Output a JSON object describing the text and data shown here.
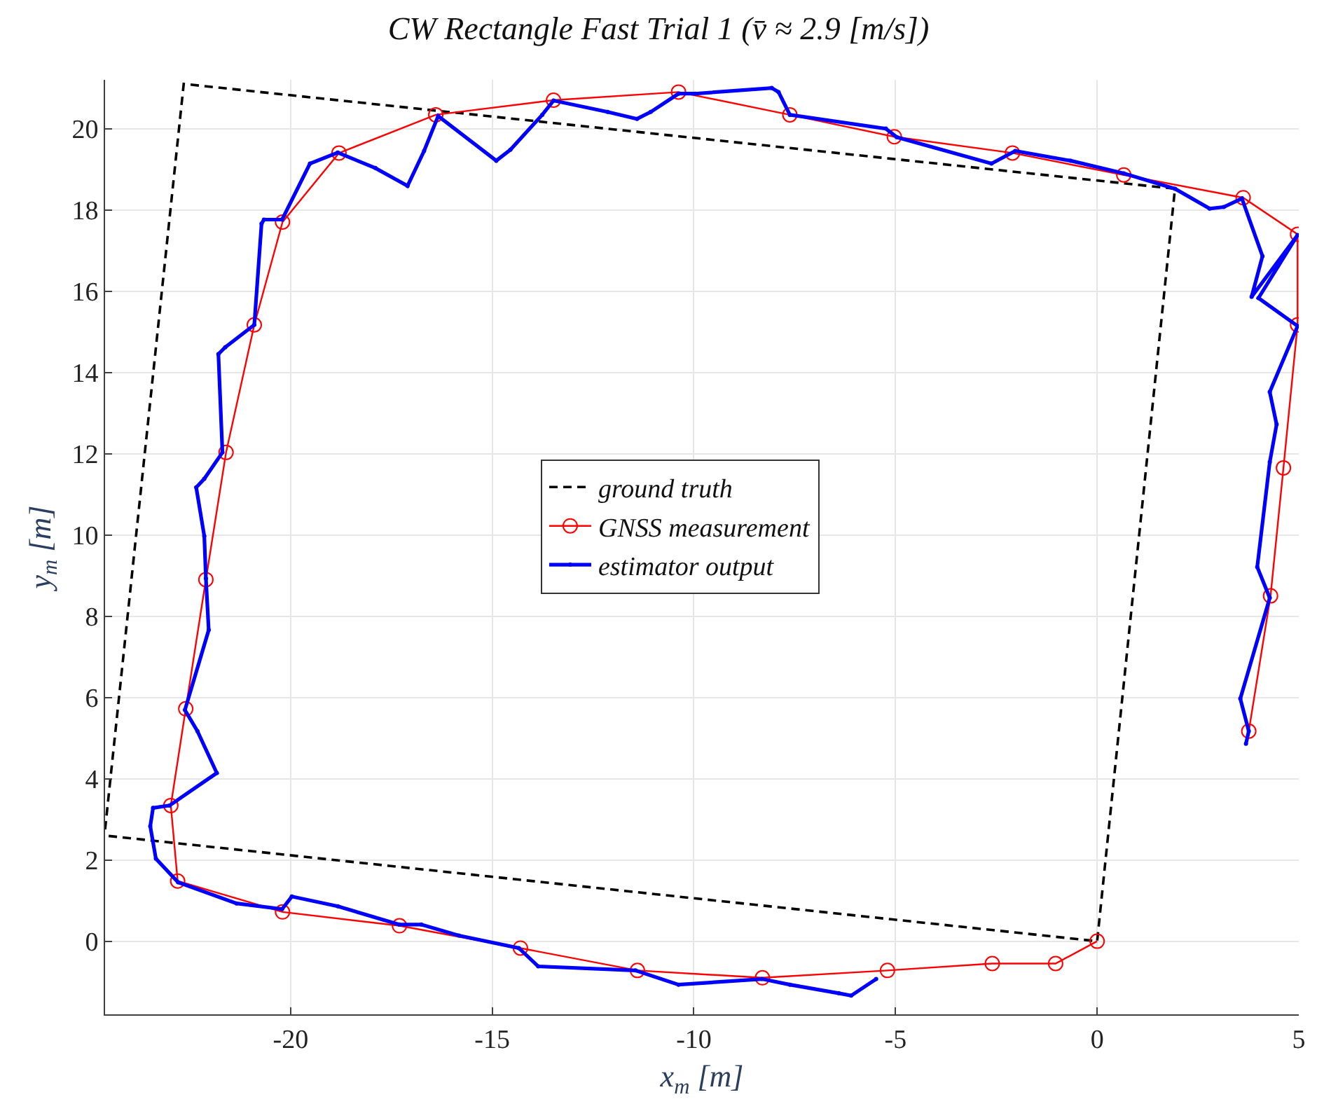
{
  "chart_data": {
    "type": "line",
    "title": "CW Rectangle Fast Trial 1 (v̄ ≈ 2.9 [m/s])",
    "xlabel": "x$_{m}$ [m]",
    "ylabel": "y$_{m}$ [m]",
    "xlim": [
      -24.6,
      5
    ],
    "ylim": [
      -1.8,
      21.2
    ],
    "xticks": [
      -20,
      -15,
      -10,
      -5,
      0,
      5
    ],
    "yticks": [
      0,
      2,
      4,
      6,
      8,
      10,
      12,
      14,
      16,
      18,
      20
    ],
    "grid": true,
    "legend": "center",
    "series": [
      {
        "name": "ground truth",
        "color": "#000000",
        "line_style": "dashed",
        "marker": "none",
        "x": [
          -24.6,
          -22.65,
          1.93,
          0,
          -24.6
        ],
        "values": [
          2.75,
          21.1,
          18.52,
          0,
          2.6
        ]
      },
      {
        "name": "GNSS measurement",
        "color": "#ff0000",
        "line_style": "solid",
        "marker": "circle",
        "x": [
          0,
          -1.03,
          -2.6,
          -5.2,
          -8.3,
          -11.4,
          -14.3,
          -17.3,
          -20.2,
          -22.8,
          -22.97,
          -22.6,
          -22.1,
          -21.6,
          -20.9,
          -20.2,
          -18.8,
          -16.4,
          -13.48,
          -10.38,
          -7.62,
          -5.03,
          -2.1,
          0.66,
          3.62,
          4.97,
          4.97,
          4.62,
          4.3,
          3.76
        ],
        "values": [
          0,
          -0.55,
          -0.55,
          -0.72,
          -0.9,
          -0.72,
          -0.17,
          0.38,
          0.72,
          1.48,
          3.34,
          5.72,
          8.9,
          12.03,
          15.17,
          17.7,
          19.4,
          20.34,
          20.7,
          20.9,
          20.34,
          19.8,
          19.4,
          18.86,
          18.3,
          17.4,
          15.17,
          11.65,
          8.5,
          5.17
        ]
      },
      {
        "name": "estimator output",
        "color": "#0000ff",
        "line_style": "solid",
        "marker": "dot",
        "x": [
          3.69,
          3.76,
          3.55,
          4.28,
          3.97,
          4.28,
          4.45,
          4.28,
          4.97,
          4.0,
          4.97,
          3.83,
          4.1,
          3.59,
          3.14,
          2.79,
          1.93,
          0.66,
          -0.66,
          -2.03,
          -2.62,
          -4.97,
          -5.24,
          -7.62,
          -7.9,
          -8.07,
          -9.97,
          -10.38,
          -11.07,
          -11.41,
          -12.14,
          -13.48,
          -13.76,
          -14.55,
          -14.9,
          -16.34,
          -16.69,
          -17.1,
          -17.9,
          -18.83,
          -19.52,
          -20.21,
          -20.66,
          -20.72,
          -20.9,
          -21.62,
          -21.79,
          -21.69,
          -22.14,
          -22.34,
          -22.14,
          -22.1,
          -22.03,
          -22.62,
          -22.31,
          -21.83,
          -23.0,
          -23.41,
          -23.48,
          -23.34,
          -22.79,
          -21.34,
          -20.21,
          -19.97,
          -18.83,
          -17.31,
          -16.76,
          -15.83,
          -14.34,
          -13.86,
          -11.45,
          -10.38,
          -8.31,
          -7.62,
          -6.41,
          -6.1,
          -5.48
        ],
        "values": [
          4.86,
          5.17,
          5.97,
          8.45,
          9.21,
          11.79,
          12.72,
          13.52,
          15.14,
          15.83,
          17.38,
          15.86,
          16.86,
          18.28,
          18.07,
          18.03,
          18.52,
          18.9,
          19.21,
          19.45,
          19.14,
          19.79,
          20.0,
          20.34,
          20.9,
          21.0,
          20.86,
          20.86,
          20.41,
          20.24,
          20.41,
          20.69,
          20.34,
          19.48,
          19.21,
          20.31,
          19.45,
          18.59,
          19.03,
          19.41,
          19.14,
          17.76,
          17.76,
          17.66,
          15.17,
          14.62,
          14.45,
          12.03,
          11.38,
          11.17,
          9.97,
          8.93,
          7.66,
          5.69,
          5.17,
          4.14,
          3.34,
          3.28,
          2.83,
          2.03,
          1.45,
          0.93,
          0.79,
          1.1,
          0.86,
          0.41,
          0.41,
          0.14,
          -0.17,
          -0.62,
          -0.72,
          -1.07,
          -0.93,
          -1.07,
          -1.28,
          -1.34,
          -0.93
        ]
      }
    ]
  }
}
